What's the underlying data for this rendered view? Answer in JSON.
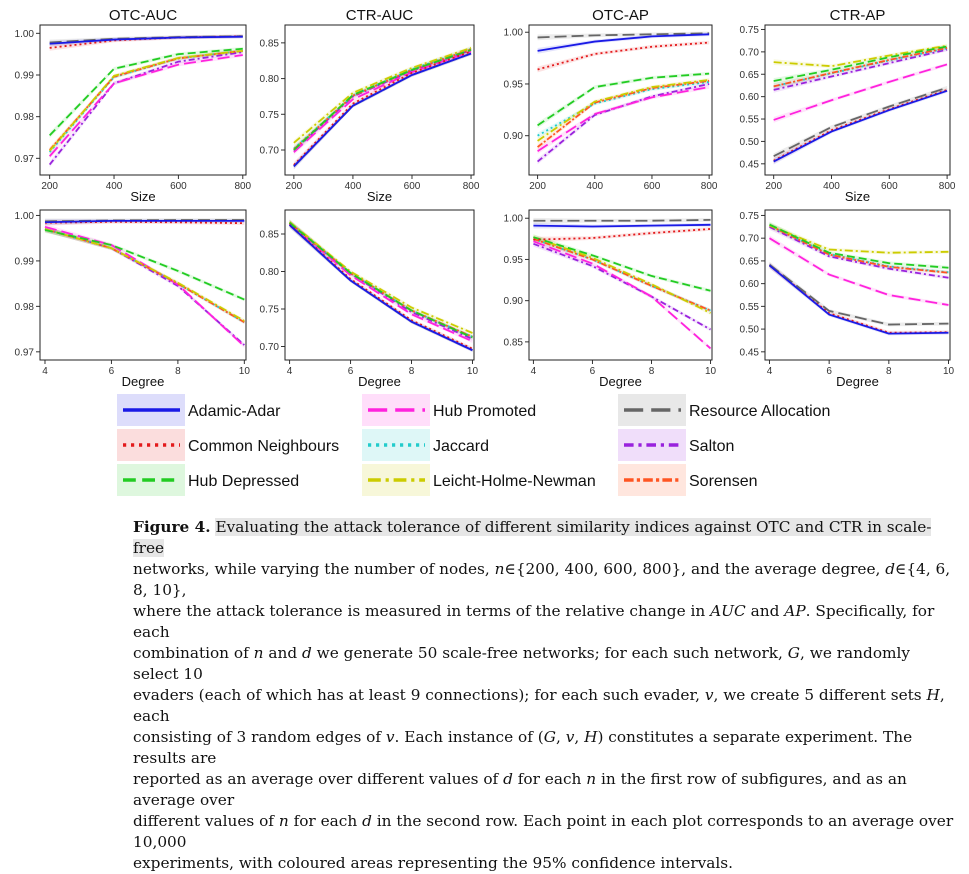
{
  "chart_data": [
    {
      "type": "line",
      "title": "OTC-AUC",
      "xlabel": "Size",
      "x": [
        200,
        400,
        600,
        800
      ],
      "xticks": [
        200,
        400,
        600,
        800
      ],
      "xlim": [
        170,
        810
      ],
      "ylim": [
        0.966,
        1.002
      ],
      "yticks": [
        "0.97",
        "0.98",
        "0.99",
        "1.00"
      ],
      "series": [
        {
          "name": "Adamic-Adar",
          "values": [
            0.9975,
            0.9985,
            0.999,
            0.9992
          ]
        },
        {
          "name": "Common Neighbours",
          "values": [
            0.9965,
            0.9983,
            0.999,
            0.9993
          ]
        },
        {
          "name": "Hub Depressed",
          "values": [
            0.9755,
            0.9915,
            0.995,
            0.9963
          ]
        },
        {
          "name": "Hub Promoted",
          "values": [
            0.9705,
            0.988,
            0.9925,
            0.9948
          ]
        },
        {
          "name": "Jaccard",
          "values": [
            0.9715,
            0.9895,
            0.994,
            0.9958
          ]
        },
        {
          "name": "Leicht-Holme-Newman",
          "values": [
            0.9718,
            0.9898,
            0.9941,
            0.9958
          ]
        },
        {
          "name": "Resource Allocation",
          "values": [
            0.9978,
            0.9987,
            0.9991,
            0.9993
          ]
        },
        {
          "name": "Salton",
          "values": [
            0.9685,
            0.988,
            0.9932,
            0.9955
          ]
        },
        {
          "name": "Sorensen",
          "values": [
            0.972,
            0.9896,
            0.994,
            0.9958
          ]
        }
      ]
    },
    {
      "type": "line",
      "title": "CTR-AUC",
      "xlabel": "Size",
      "x": [
        200,
        400,
        600,
        800
      ],
      "xticks": [
        200,
        400,
        600,
        800
      ],
      "xlim": [
        170,
        810
      ],
      "ylim": [
        0.665,
        0.875
      ],
      "yticks": [
        "0.70",
        "0.75",
        "0.80",
        "0.85"
      ],
      "series": [
        {
          "name": "Adamic-Adar",
          "values": [
            0.677,
            0.762,
            0.805,
            0.835
          ]
        },
        {
          "name": "Common Neighbours",
          "values": [
            0.679,
            0.765,
            0.808,
            0.838
          ]
        },
        {
          "name": "Hub Depressed",
          "values": [
            0.7,
            0.777,
            0.812,
            0.84
          ]
        },
        {
          "name": "Hub Promoted",
          "values": [
            0.697,
            0.771,
            0.809,
            0.838
          ]
        },
        {
          "name": "Jaccard",
          "values": [
            0.702,
            0.776,
            0.813,
            0.842
          ]
        },
        {
          "name": "Leicht-Holme-Newman",
          "values": [
            0.71,
            0.78,
            0.815,
            0.843
          ]
        },
        {
          "name": "Resource Allocation",
          "values": [
            0.677,
            0.762,
            0.805,
            0.835
          ]
        },
        {
          "name": "Salton",
          "values": [
            0.699,
            0.775,
            0.811,
            0.84
          ]
        },
        {
          "name": "Sorensen",
          "values": [
            0.701,
            0.776,
            0.812,
            0.841
          ]
        }
      ]
    },
    {
      "type": "line",
      "title": "OTC-AP",
      "xlabel": "",
      "x": [
        200,
        400,
        600,
        800
      ],
      "xticks": [
        200,
        400,
        600,
        800
      ],
      "xlim": [
        170,
        810
      ],
      "ylim": [
        0.862,
        1.007
      ],
      "yticks": [
        "0.90",
        "0.95",
        "1.00"
      ],
      "series": [
        {
          "name": "Adamic-Adar",
          "values": [
            0.982,
            0.991,
            0.996,
            0.998
          ]
        },
        {
          "name": "Common Neighbours",
          "values": [
            0.964,
            0.979,
            0.986,
            0.99
          ]
        },
        {
          "name": "Hub Depressed",
          "values": [
            0.91,
            0.947,
            0.956,
            0.96
          ]
        },
        {
          "name": "Hub Promoted",
          "values": [
            0.885,
            0.921,
            0.937,
            0.947
          ]
        },
        {
          "name": "Jaccard",
          "values": [
            0.9,
            0.931,
            0.945,
            0.952
          ]
        },
        {
          "name": "Leicht-Holme-Newman",
          "values": [
            0.895,
            0.933,
            0.947,
            0.954
          ]
        },
        {
          "name": "Resource Allocation",
          "values": [
            0.995,
            0.997,
            0.998,
            0.999
          ]
        },
        {
          "name": "Salton",
          "values": [
            0.875,
            0.92,
            0.938,
            0.95
          ]
        },
        {
          "name": "Sorensen",
          "values": [
            0.889,
            0.932,
            0.946,
            0.953
          ]
        }
      ]
    },
    {
      "type": "line",
      "title": "CTR-AP",
      "xlabel": "Size",
      "x": [
        200,
        400,
        600,
        800
      ],
      "xticks": [
        200,
        400,
        600,
        800
      ],
      "xlim": [
        170,
        810
      ],
      "ylim": [
        0.425,
        0.76
      ],
      "yticks": [
        "0.45",
        "0.50",
        "0.55",
        "0.60",
        "0.65",
        "0.70",
        "0.75"
      ],
      "series": [
        {
          "name": "Adamic-Adar",
          "values": [
            0.455,
            0.522,
            0.57,
            0.613
          ]
        },
        {
          "name": "Common Neighbours",
          "values": [
            0.457,
            0.525,
            0.572,
            0.615
          ]
        },
        {
          "name": "Hub Depressed",
          "values": [
            0.635,
            0.66,
            0.688,
            0.712
          ]
        },
        {
          "name": "Hub Promoted",
          "values": [
            0.548,
            0.592,
            0.633,
            0.672
          ]
        },
        {
          "name": "Jaccard",
          "values": [
            0.623,
            0.652,
            0.681,
            0.708
          ]
        },
        {
          "name": "Leicht-Holme-Newman",
          "values": [
            0.677,
            0.668,
            0.692,
            0.714
          ]
        },
        {
          "name": "Resource Allocation",
          "values": [
            0.467,
            0.532,
            0.578,
            0.62
          ]
        },
        {
          "name": "Salton",
          "values": [
            0.615,
            0.645,
            0.675,
            0.705
          ]
        },
        {
          "name": "Sorensen",
          "values": [
            0.623,
            0.653,
            0.682,
            0.709
          ]
        }
      ]
    },
    {
      "type": "line",
      "title": "",
      "xlabel": "Degree",
      "x": [
        4,
        6,
        8,
        10
      ],
      "xticks": [
        4,
        6,
        8,
        10
      ],
      "xlim": [
        3.85,
        10.05
      ],
      "ylim": [
        0.9682,
        1.0012
      ],
      "yticks": [
        "0.97",
        "0.98",
        "0.99",
        "1.00"
      ],
      "series": [
        {
          "name": "Adamic-Adar",
          "values": [
            0.9985,
            0.9988,
            0.9988,
            0.9988
          ]
        },
        {
          "name": "Common Neighbours",
          "values": [
            0.9984,
            0.9986,
            0.9985,
            0.9983
          ]
        },
        {
          "name": "Hub Depressed",
          "values": [
            0.9968,
            0.9935,
            0.9878,
            0.9815
          ]
        },
        {
          "name": "Hub Promoted",
          "values": [
            0.9975,
            0.9935,
            0.9848,
            0.9712
          ]
        },
        {
          "name": "Jaccard",
          "values": [
            0.997,
            0.9928,
            0.985,
            0.9765
          ]
        },
        {
          "name": "Leicht-Holme-Newman",
          "values": [
            0.997,
            0.9928,
            0.9852,
            0.9768
          ]
        },
        {
          "name": "Resource Allocation",
          "values": [
            0.9987,
            0.9989,
            0.999,
            0.999
          ]
        },
        {
          "name": "Salton",
          "values": [
            0.997,
            0.9928,
            0.9845,
            0.9715
          ]
        },
        {
          "name": "Sorensen",
          "values": [
            0.997,
            0.9928,
            0.985,
            0.9765
          ]
        }
      ]
    },
    {
      "type": "line",
      "title": "",
      "xlabel": "Degree",
      "x": [
        4,
        6,
        8,
        10
      ],
      "xticks": [
        4,
        6,
        8,
        10
      ],
      "xlim": [
        3.85,
        10.05
      ],
      "ylim": [
        0.682,
        0.882
      ],
      "yticks": [
        "0.70",
        "0.75",
        "0.80",
        "0.85"
      ],
      "series": [
        {
          "name": "Adamic-Adar",
          "values": [
            0.862,
            0.788,
            0.733,
            0.695
          ]
        },
        {
          "name": "Common Neighbours",
          "values": [
            0.863,
            0.79,
            0.735,
            0.697
          ]
        },
        {
          "name": "Hub Depressed",
          "values": [
            0.865,
            0.798,
            0.748,
            0.712
          ]
        },
        {
          "name": "Hub Promoted",
          "values": [
            0.864,
            0.795,
            0.743,
            0.707
          ]
        },
        {
          "name": "Jaccard",
          "values": [
            0.865,
            0.798,
            0.748,
            0.713
          ]
        },
        {
          "name": "Leicht-Holme-Newman",
          "values": [
            0.866,
            0.8,
            0.752,
            0.718
          ]
        },
        {
          "name": "Resource Allocation",
          "values": [
            0.862,
            0.788,
            0.733,
            0.695
          ]
        },
        {
          "name": "Salton",
          "values": [
            0.865,
            0.797,
            0.746,
            0.71
          ]
        },
        {
          "name": "Sorensen",
          "values": [
            0.865,
            0.798,
            0.748,
            0.713
          ]
        }
      ]
    },
    {
      "type": "line",
      "title": "",
      "xlabel": "Degree",
      "x": [
        4,
        6,
        8,
        10
      ],
      "xticks": [
        4,
        6,
        8,
        10
      ],
      "xlim": [
        3.85,
        10.05
      ],
      "ylim": [
        0.828,
        1.01
      ],
      "yticks": [
        "0.85",
        "0.90",
        "0.95",
        "1.00"
      ],
      "series": [
        {
          "name": "Adamic-Adar",
          "values": [
            0.991,
            0.99,
            0.991,
            0.992
          ]
        },
        {
          "name": "Common Neighbours",
          "values": [
            0.974,
            0.976,
            0.982,
            0.987
          ]
        },
        {
          "name": "Hub Depressed",
          "values": [
            0.977,
            0.955,
            0.93,
            0.912
          ]
        },
        {
          "name": "Hub Promoted",
          "values": [
            0.972,
            0.945,
            0.905,
            0.842
          ]
        },
        {
          "name": "Jaccard",
          "values": [
            0.975,
            0.95,
            0.918,
            0.888
          ]
        },
        {
          "name": "Leicht-Holme-Newman",
          "values": [
            0.977,
            0.952,
            0.92,
            0.885
          ]
        },
        {
          "name": "Resource Allocation",
          "values": [
            0.997,
            0.997,
            0.997,
            0.998
          ]
        },
        {
          "name": "Salton",
          "values": [
            0.969,
            0.942,
            0.905,
            0.865
          ]
        },
        {
          "name": "Sorensen",
          "values": [
            0.975,
            0.95,
            0.918,
            0.888
          ]
        }
      ]
    },
    {
      "type": "line",
      "title": "",
      "xlabel": "Degree",
      "x": [
        4,
        6,
        8,
        10
      ],
      "xticks": [
        4,
        6,
        8,
        10
      ],
      "xlim": [
        3.85,
        10.05
      ],
      "ylim": [
        0.432,
        0.762
      ],
      "yticks": [
        "0.45",
        "0.50",
        "0.55",
        "0.60",
        "0.65",
        "0.70",
        "0.75"
      ],
      "series": [
        {
          "name": "Adamic-Adar",
          "values": [
            0.64,
            0.532,
            0.49,
            0.492
          ]
        },
        {
          "name": "Common Neighbours",
          "values": [
            0.64,
            0.535,
            0.492,
            0.493
          ]
        },
        {
          "name": "Hub Depressed",
          "values": [
            0.73,
            0.668,
            0.645,
            0.635
          ]
        },
        {
          "name": "Hub Promoted",
          "values": [
            0.7,
            0.62,
            0.575,
            0.553
          ]
        },
        {
          "name": "Jaccard",
          "values": [
            0.728,
            0.665,
            0.638,
            0.625
          ]
        },
        {
          "name": "Leicht-Holme-Newman",
          "values": [
            0.728,
            0.675,
            0.668,
            0.67
          ]
        },
        {
          "name": "Resource Allocation",
          "values": [
            0.642,
            0.54,
            0.51,
            0.512
          ]
        },
        {
          "name": "Salton",
          "values": [
            0.725,
            0.66,
            0.633,
            0.613
          ]
        },
        {
          "name": "Sorensen",
          "values": [
            0.728,
            0.664,
            0.637,
            0.624
          ]
        }
      ]
    }
  ],
  "legend": {
    "entries": [
      {
        "name": "Adamic-Adar",
        "color": "#1a1ae6",
        "dash": "solid"
      },
      {
        "name": "Common Neighbours",
        "color": "#e31a1c",
        "dash": "dotted"
      },
      {
        "name": "Hub Depressed",
        "color": "#22cc22",
        "dash": "dashed"
      },
      {
        "name": "Hub Promoted",
        "color": "#ff22dd",
        "dash": "longdash"
      },
      {
        "name": "Jaccard",
        "color": "#22cccc",
        "dash": "dotted"
      },
      {
        "name": "Leicht-Holme-Newman",
        "color": "#cccc00",
        "dash": "dotdash"
      },
      {
        "name": "Resource Allocation",
        "color": "#666666",
        "dash": "longdash"
      },
      {
        "name": "Salton",
        "color": "#9922dd",
        "dash": "dashdot"
      },
      {
        "name": "Sorensen",
        "color": "#ff5522",
        "dash": "twodash"
      }
    ]
  },
  "caption": {
    "label": "Figure 4.",
    "highlight": "Evaluating the attack tolerance of different similarity indices against OTC and CTR in scale-free",
    "l2a": "networks, while varying the number of nodes, ",
    "l2b": "n",
    "l2c": "∈{200, 400, 600, 800}, and the average degree, ",
    "l2d": "d",
    "l2e": "∈{4, 6, 8, 10},",
    "l3a": "where the attack tolerance is measured in terms of the relative change in ",
    "l3b": "AUC",
    "l3c": " and ",
    "l3d": "AP",
    "l3e": ". Specifically, for each",
    "l4a": "combination of ",
    "l4b": "n",
    "l4c": " and ",
    "l4d": "d",
    "l4e": " we generate 50 scale-free networks; for each such network, ",
    "l4f": "G",
    "l4g": ", we randomly select 10",
    "l5a": "evaders (each of which has at least 9 connections); for each such evader, ",
    "l5b": "v",
    "l5c": ", we create 5 different sets ",
    "l5d": "H",
    "l5e": ", each",
    "l6a": "consisting of 3 random edges of ",
    "l6b": "v",
    "l6c": ". Each instance of (",
    "l6d": "G",
    "l6e": ", ",
    "l6f": "v",
    "l6g": ", ",
    "l6h": "H",
    "l6i": ") constitutes a separate experiment. The results are",
    "l7a": "reported as an average over different values of ",
    "l7b": "d",
    "l7c": " for each ",
    "l7d": "n",
    "l7e": " in the first row of subfigures, and as an average over",
    "l8a": "different values of ",
    "l8b": "n",
    "l8c": " for each ",
    "l8d": "d",
    "l8e": " in the second row. Each point in each plot corresponds to an average over 10,000",
    "l9": "experiments, with coloured areas representing the 95% confidence intervals."
  }
}
